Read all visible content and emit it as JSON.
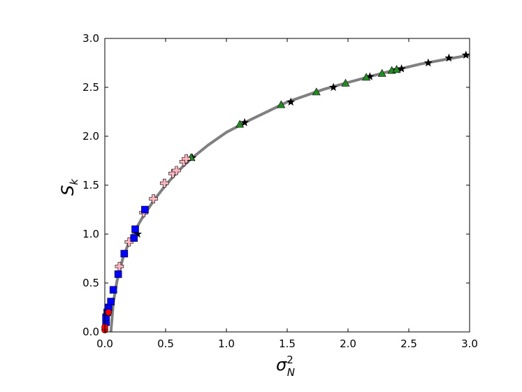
{
  "chart_data": {
    "type": "scatter",
    "xlabel": {
      "base": "σ",
      "sub": "N",
      "sup": "2"
    },
    "ylabel": {
      "base": "S",
      "sub": "k"
    },
    "xlim": [
      0,
      3
    ],
    "ylim": [
      0,
      3
    ],
    "xticks": [
      {
        "value": 0,
        "label": "0.0"
      },
      {
        "value": 0.5,
        "label": "0.5"
      },
      {
        "value": 1,
        "label": "1.0"
      },
      {
        "value": 1.5,
        "label": "1.5"
      },
      {
        "value": 2,
        "label": "2.0"
      },
      {
        "value": 2.5,
        "label": "2.5"
      },
      {
        "value": 3,
        "label": "3.0"
      }
    ],
    "yticks": [
      {
        "value": 0,
        "label": "0.0"
      },
      {
        "value": 0.5,
        "label": "0.5"
      },
      {
        "value": 1,
        "label": "1.0"
      },
      {
        "value": 1.5,
        "label": "1.5"
      },
      {
        "value": 2,
        "label": "2.0"
      },
      {
        "value": 2.5,
        "label": "2.5"
      },
      {
        "value": 3,
        "label": "3.0"
      }
    ],
    "series": [
      {
        "style": "line",
        "color": "#808080",
        "x": [
          0.05,
          0.07,
          0.1,
          0.15,
          0.2,
          0.25,
          0.3,
          0.4,
          0.5,
          0.6,
          0.7,
          0.85,
          1.0,
          1.2,
          1.5,
          1.8,
          2.0,
          2.3,
          2.6,
          3.0
        ],
        "values": [
          0,
          0.3,
          0.52,
          0.76,
          0.92,
          1.04,
          1.15,
          1.34,
          1.5,
          1.64,
          1.76,
          1.91,
          2.04,
          2.17,
          2.35,
          2.48,
          2.55,
          2.65,
          2.74,
          2.83
        ]
      },
      {
        "style": "star",
        "color": "#000000",
        "x": [
          0.27,
          0.72,
          1.15,
          1.53,
          1.88,
          2.18,
          2.4,
          2.44,
          2.66,
          2.83,
          2.97
        ],
        "values": [
          1.0,
          1.78,
          2.14,
          2.35,
          2.5,
          2.61,
          2.68,
          2.69,
          2.75,
          2.8,
          2.83
        ]
      },
      {
        "style": "triangle",
        "color": "#228b22",
        "x": [
          0.71,
          1.11,
          1.45,
          1.74,
          1.98,
          2.15,
          2.28,
          2.36,
          2.4
        ],
        "values": [
          1.78,
          2.12,
          2.32,
          2.45,
          2.54,
          2.6,
          2.64,
          2.67,
          2.68
        ]
      },
      {
        "style": "plus",
        "color": "#ffb6c1",
        "x": [
          0.12,
          0.2,
          0.32,
          0.4,
          0.49,
          0.56,
          0.59,
          0.65,
          0.67
        ],
        "values": [
          0.67,
          0.92,
          1.22,
          1.36,
          1.52,
          1.62,
          1.65,
          1.74,
          1.77
        ]
      },
      {
        "style": "square",
        "color": "#0000ff",
        "x": [
          0.01,
          0.01,
          0.02,
          0.03,
          0.05,
          0.07,
          0.11,
          0.16,
          0.24,
          0.25,
          0.33
        ],
        "values": [
          0.1,
          0.15,
          0.2,
          0.25,
          0.31,
          0.43,
          0.59,
          0.8,
          0.96,
          1.05,
          1.25
        ]
      },
      {
        "style": "circle",
        "color": "#ff0000",
        "x": [
          0.0,
          0.0,
          0.03
        ],
        "values": [
          0.02,
          0.05,
          0.2
        ]
      }
    ]
  }
}
